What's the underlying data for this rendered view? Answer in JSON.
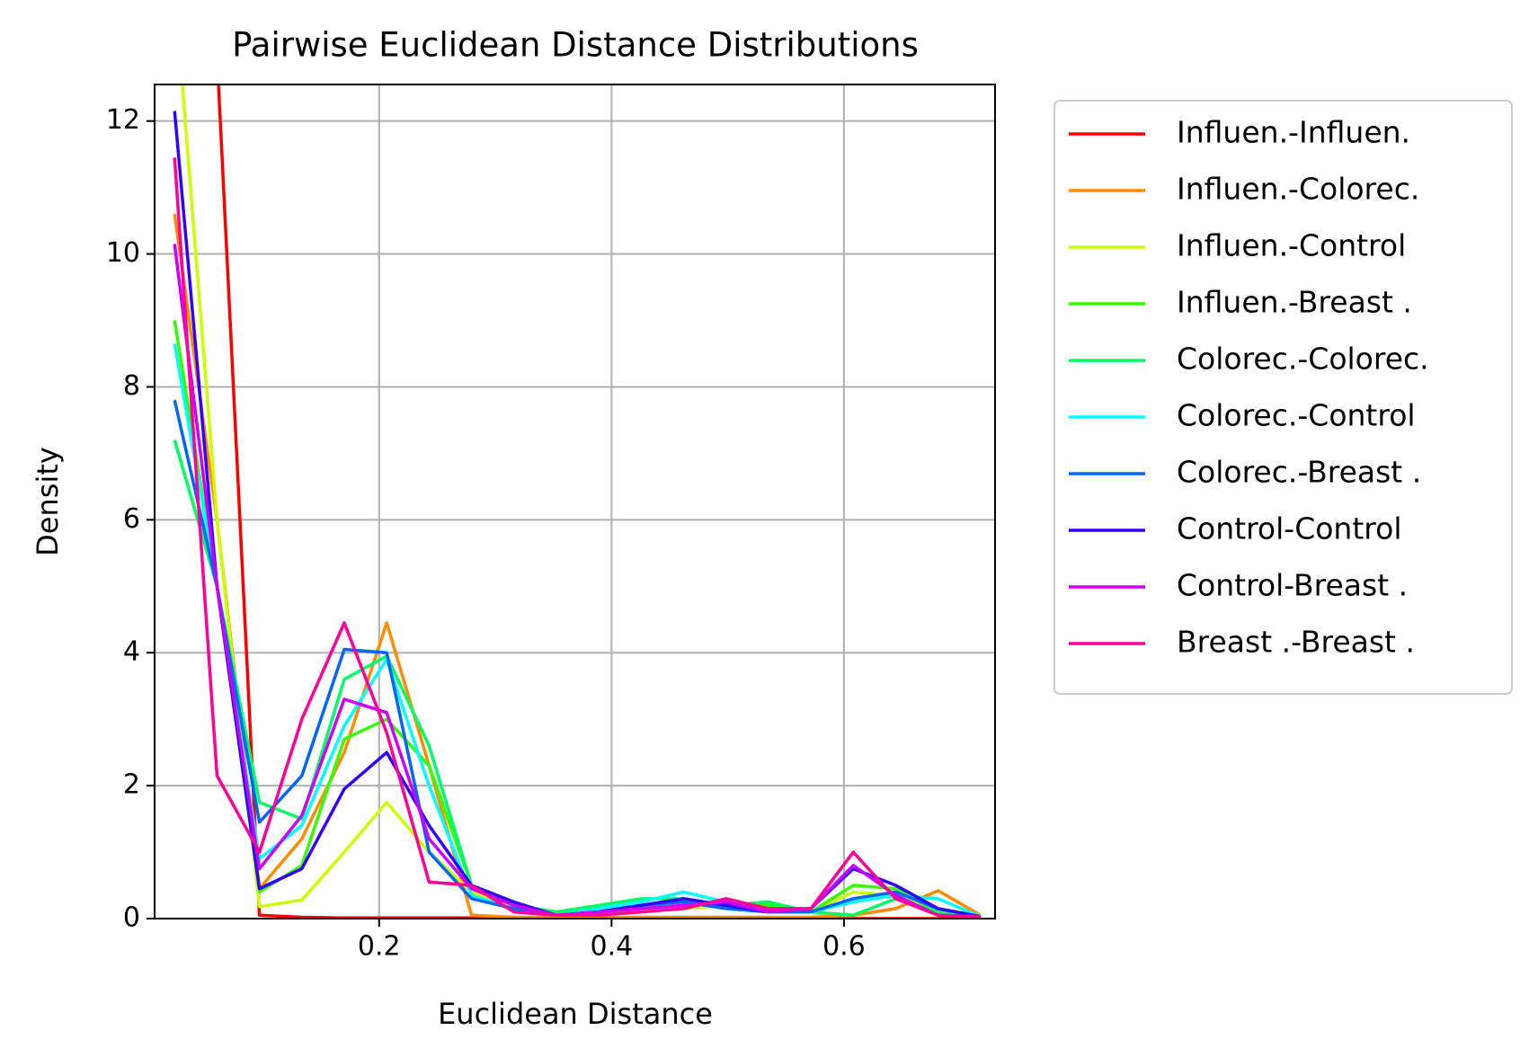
{
  "chart_data": {
    "type": "line",
    "title": "Pairwise Euclidean Distance Distributions",
    "x_label": "Euclidean Distance",
    "y_label": "Density",
    "x": [
      0.024,
      0.0605,
      0.097,
      0.1335,
      0.17,
      0.2065,
      0.243,
      0.2795,
      0.316,
      0.3525,
      0.389,
      0.4255,
      0.462,
      0.4985,
      0.535,
      0.5715,
      0.608,
      0.6445,
      0.681,
      0.7175
    ],
    "series": [
      {
        "name": "Influen.-Influen.",
        "color": "#ff0000",
        "values": [
          20,
          13,
          0.05,
          0.02,
          0.01,
          0.01,
          0.01,
          0.01,
          0,
          0,
          0,
          0,
          0,
          0,
          0,
          0,
          0,
          0,
          0,
          0
        ]
      },
      {
        "name": "Influen.-Colorec.",
        "color": "#ff8c00",
        "values": [
          10.6,
          6,
          0.45,
          1.2,
          2.5,
          4.45,
          2.3,
          0.05,
          0.02,
          0.02,
          0.02,
          0.02,
          0.02,
          0.02,
          0.02,
          0.02,
          0.05,
          0.15,
          0.42,
          0.05
        ]
      },
      {
        "name": "Influen.-Control",
        "color": "#ccff00",
        "values": [
          14,
          6,
          0.18,
          0.28,
          1.0,
          1.75,
          1.0,
          0.4,
          0.15,
          0.08,
          0.08,
          0.1,
          0.15,
          0.2,
          0.15,
          0.1,
          0.4,
          0.35,
          0.15,
          0.05
        ]
      },
      {
        "name": "Influen.-Breast .",
        "color": "#33ff00",
        "values": [
          9,
          5,
          0.4,
          0.8,
          2.7,
          3.0,
          2.3,
          0.5,
          0.2,
          0.1,
          0.15,
          0.2,
          0.25,
          0.2,
          0.2,
          0.1,
          0.5,
          0.45,
          0.1,
          0.03
        ]
      },
      {
        "name": "Colorec.-Colorec.",
        "color": "#00ff66",
        "values": [
          7.2,
          5,
          1.75,
          1.5,
          3.6,
          3.95,
          2.6,
          0.5,
          0.2,
          0.1,
          0.2,
          0.3,
          0.3,
          0.2,
          0.25,
          0.1,
          0.05,
          0.3,
          0.1,
          0.03
        ]
      },
      {
        "name": "Colorec.-Control",
        "color": "#00ffff",
        "values": [
          8.65,
          5,
          0.9,
          1.4,
          2.9,
          3.9,
          2.0,
          0.35,
          0.15,
          0.05,
          0.15,
          0.25,
          0.4,
          0.25,
          0.1,
          0.1,
          0.25,
          0.35,
          0.3,
          0.03
        ]
      },
      {
        "name": "Colorec.-Breast .",
        "color": "#0066ff",
        "values": [
          7.8,
          5,
          1.45,
          2.15,
          4.05,
          4.0,
          1.0,
          0.3,
          0.15,
          0.05,
          0.1,
          0.2,
          0.25,
          0.15,
          0.1,
          0.1,
          0.3,
          0.4,
          0.15,
          0.03
        ]
      },
      {
        "name": "Control-Control",
        "color": "#3300ff",
        "values": [
          12.15,
          5,
          0.45,
          0.75,
          1.95,
          2.5,
          1.4,
          0.5,
          0.25,
          0.05,
          0.1,
          0.2,
          0.3,
          0.2,
          0.1,
          0.15,
          0.75,
          0.5,
          0.15,
          0.03
        ]
      },
      {
        "name": "Control-Breast .",
        "color": "#cc00ff",
        "values": [
          10.15,
          5,
          0.75,
          1.55,
          3.3,
          3.1,
          1.2,
          0.45,
          0.2,
          0.05,
          0.1,
          0.15,
          0.2,
          0.25,
          0.1,
          0.15,
          0.8,
          0.35,
          0.05,
          0.03
        ]
      },
      {
        "name": "Breast .-Breast .",
        "color": "#ff0099",
        "values": [
          11.45,
          2.15,
          1.0,
          3.0,
          4.45,
          2.8,
          0.55,
          0.5,
          0.1,
          0.05,
          0.05,
          0.1,
          0.15,
          0.3,
          0.15,
          0.15,
          1.0,
          0.3,
          0.05,
          0.03
        ]
      }
    ],
    "xlim": [
      0.0068,
      0.73
    ],
    "ylim": [
      0,
      12.55
    ],
    "xticks": [
      0.2,
      0.4,
      0.6
    ],
    "yticks": [
      0,
      2,
      4,
      6,
      8,
      10,
      12
    ],
    "grid": true
  }
}
